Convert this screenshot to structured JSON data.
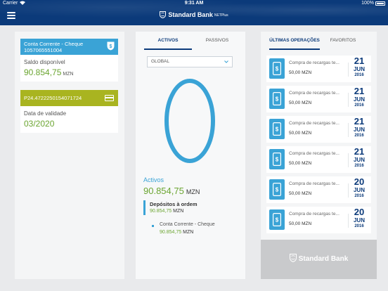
{
  "status_bar": {
    "carrier": "Carrier",
    "time": "9:31 AM",
    "battery": "100%"
  },
  "header": {
    "brand": "Standard Bank",
    "brand_suffix": "NETPlus",
    "menu_icon": "hamburger-icon"
  },
  "account_card": {
    "name": "Conta Corrente - Cheque",
    "number": "1057065551004",
    "balance_label": "Saldo disponível",
    "balance": "90.854,75",
    "currency": "MZN",
    "icon": "shield-dollar-icon"
  },
  "credit_card": {
    "number": "P24.4722250154071724",
    "expiry_label": "Data de validade",
    "expiry": "03/2020",
    "icon": "credit-card-icon"
  },
  "portfolio": {
    "tabs": [
      {
        "label": "ACTIVOS",
        "active": true
      },
      {
        "label": "PASSIVOS",
        "active": false
      }
    ],
    "filter": "GLOBAL",
    "total_label": "Activos",
    "total": "90.854,75",
    "currency": "MZN",
    "group_label": "Depósitos à ordem",
    "group_value": "90.854,75",
    "group_currency": "MZN",
    "item_label": "Conta Corrente - Cheque",
    "item_value": "90.854,75",
    "item_currency": "MZN",
    "donut_share": 1.0,
    "colors": {
      "accent": "#3aa3d6",
      "positive": "#6ba531",
      "brand": "#0b3a7a"
    }
  },
  "operations": {
    "tabs": [
      {
        "label": "ÚLTIMAS OPERAÇÕES",
        "active": true
      },
      {
        "label": "FAVORITOS",
        "active": false
      }
    ],
    "items": [
      {
        "title": "Compra de recargas te...",
        "amount": "50,00 MZN",
        "day": "21",
        "month": "JUN",
        "year": "2016"
      },
      {
        "title": "Compra de recargas te...",
        "amount": "50,00 MZN",
        "day": "21",
        "month": "JUN",
        "year": "2016"
      },
      {
        "title": "Compra de recargas te...",
        "amount": "50,00 MZN",
        "day": "21",
        "month": "JUN",
        "year": "2016"
      },
      {
        "title": "Compra de recargas te...",
        "amount": "50,00 MZN",
        "day": "21",
        "month": "JUN",
        "year": "2016"
      },
      {
        "title": "Compra de recargas te...",
        "amount": "50,00 MZN",
        "day": "20",
        "month": "JUN",
        "year": "2016"
      },
      {
        "title": "Compra de recargas te...",
        "amount": "50,00 MZN",
        "day": "20",
        "month": "JUN",
        "year": "2016"
      }
    ],
    "tx_icon": "phone-dollar-icon"
  },
  "footer": {
    "brand": "Standard Bank"
  }
}
